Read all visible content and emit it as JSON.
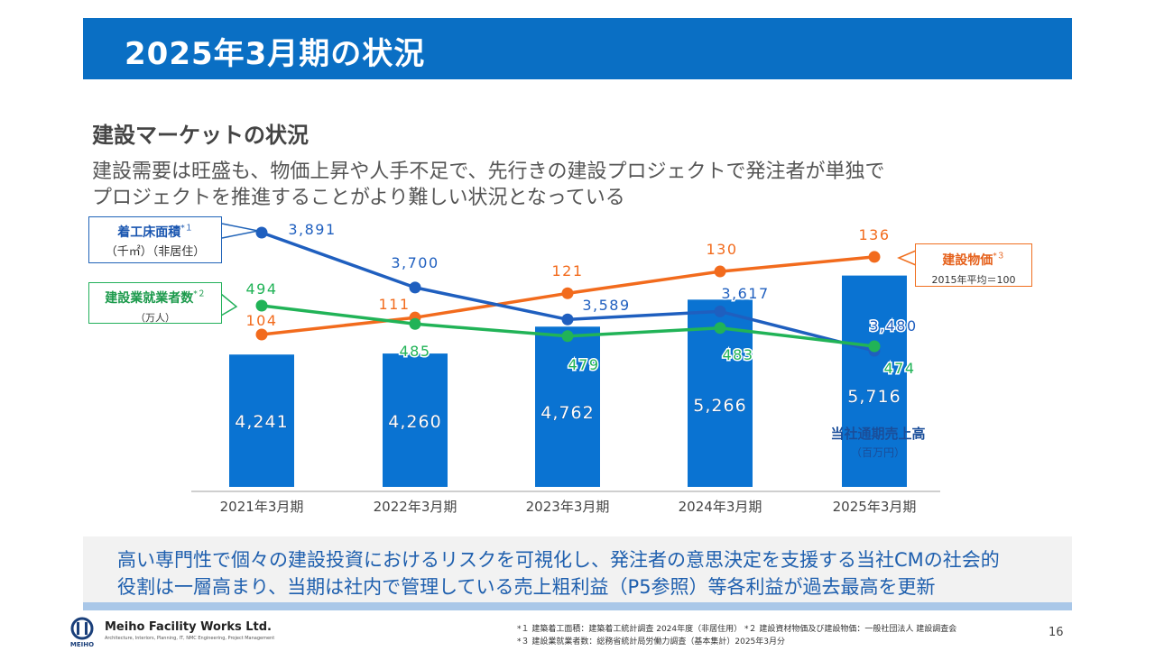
{
  "header": {
    "title": "2025年3月期の状況"
  },
  "section": {
    "heading": "建設マーケットの状況",
    "intro_line1": "建設需要は旺盛も、物価上昇や人手不足で、先行きの建設プロジェクトで発注者が単独で",
    "intro_line2": "プロジェクトを推進することがより難しい状況となっている"
  },
  "callouts": {
    "floor_area": {
      "label": "着工床面積",
      "sup": "*１",
      "sub": "（千㎡）（非居住）"
    },
    "workers": {
      "label": "建設業就業者数",
      "sup": "*２",
      "sub": "（万人）"
    },
    "prices": {
      "label": "建設物価",
      "sup": "*３",
      "sub": "2015年平均＝100"
    }
  },
  "sales_label": {
    "line1": "当社通期売上高",
    "line2": "（百万円）"
  },
  "colors": {
    "blue_line": "#1f5fbf",
    "green_line": "#21b357",
    "orange_line": "#f26b1d",
    "bar": "#0a73d2",
    "title_bar": "#0a6fc4"
  },
  "chart_data": {
    "type": "bar",
    "categories": [
      "2021年3月期",
      "2022年3月期",
      "2023年3月期",
      "2024年3月期",
      "2025年3月期"
    ],
    "series": [
      {
        "name": "当社通期売上高（百万円）",
        "type": "bar",
        "values": [
          4241,
          4260,
          4762,
          5266,
          5716
        ]
      },
      {
        "name": "着工床面積（千㎡）（非居住）",
        "type": "line",
        "values": [
          3891,
          3700,
          3589,
          3617,
          3480
        ]
      },
      {
        "name": "建設業就業者数（万人）",
        "type": "line",
        "values": [
          494,
          485,
          479,
          483,
          474
        ]
      },
      {
        "name": "建設物価（2015年平均＝100）",
        "type": "line",
        "values": [
          104,
          111,
          121,
          130,
          136
        ]
      }
    ]
  },
  "conclusion": {
    "line1": "高い専門性で個々の建設投資におけるリスクを可視化し、発注者の意思決定を支援する当社CMの社会的",
    "line2": "役割は一層高まり、当期は社内で管理している売上粗利益（P5参照）等各利益が過去最高を更新"
  },
  "footer": {
    "company": "Meiho Facility Works Ltd.",
    "tagline": "Architecture, Interiors, Planning, IT, NMC Engineering, Project Management",
    "logo_text": "MEIHO",
    "note1": "*１ 建築着工面積：建築着工統計調査 2024年度（非居住用） *２ 建設資材物価及び建設物価：一般社団法人 建設調査会",
    "note2": "*３ 建設業就業者数：総務省統計局労働力調査（基本集計）2025年3月分",
    "page_number": "16"
  }
}
